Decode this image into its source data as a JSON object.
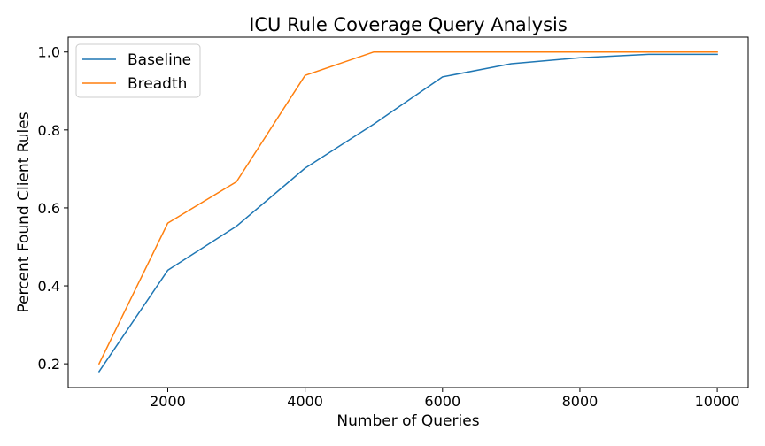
{
  "chart_data": {
    "type": "line",
    "title": "ICU Rule Coverage Query Analysis",
    "xlabel": "Number of Queries",
    "ylabel": "Percent Found Client Rules",
    "x": [
      1000,
      2000,
      3000,
      4000,
      5000,
      6000,
      7000,
      8000,
      9000,
      10000
    ],
    "xlim": [
      550,
      10450
    ],
    "ylim": [
      0.139,
      1.038
    ],
    "xticks": [
      2000,
      4000,
      6000,
      8000,
      10000
    ],
    "xtick_labels": [
      "2000",
      "4000",
      "6000",
      "8000",
      "10000"
    ],
    "yticks": [
      0.2,
      0.4,
      0.6,
      0.8,
      1.0
    ],
    "ytick_labels": [
      "0.2",
      "0.4",
      "0.6",
      "0.8",
      "1.0"
    ],
    "grid": false,
    "legend_position": "top-left",
    "series": [
      {
        "name": "Baseline",
        "color": "#1f77b4",
        "values": [
          0.18,
          0.44,
          0.553,
          0.702,
          0.815,
          0.936,
          0.97,
          0.985,
          0.994,
          0.994
        ]
      },
      {
        "name": "Breadth",
        "color": "#ff7f0e",
        "values": [
          0.2,
          0.561,
          0.667,
          0.94,
          1.0,
          1.0,
          1.0,
          1.0,
          1.0,
          1.0
        ]
      }
    ]
  }
}
